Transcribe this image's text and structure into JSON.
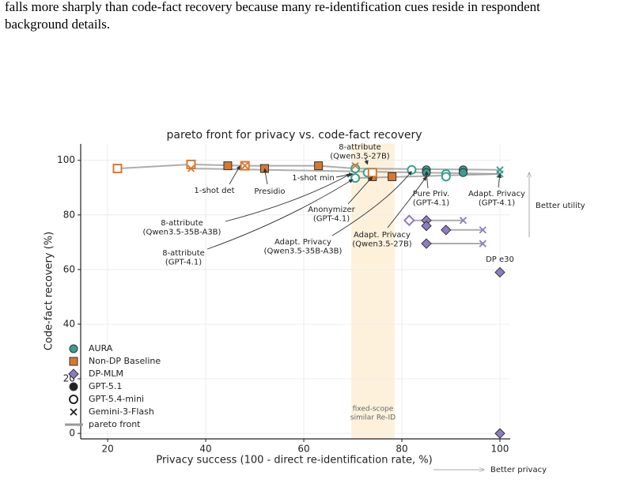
{
  "page_text": {
    "lines": [
      "falls more sharply than code-fact recovery because many re-identification cues reside in respondent",
      "background details."
    ]
  },
  "chart_data": {
    "type": "scatter",
    "title": "pareto front for privacy vs. code-fact recovery",
    "x_label": "Privacy success (100 - direct re-identification rate, %)",
    "y_label": "Code-fact recovery (%)",
    "xlim": [
      14.5,
      102.1
    ],
    "ylim": [
      -2,
      106
    ],
    "xticks": [
      20,
      40,
      60,
      80,
      100
    ],
    "yticks": [
      0,
      20,
      40,
      60,
      80,
      100
    ],
    "grid": true,
    "models": [
      {
        "name": "GPT-5.1",
        "style": "filled"
      },
      {
        "name": "GPT-5.4-mini",
        "style": "open"
      },
      {
        "name": "Gemini-3-Flash",
        "style": "x"
      }
    ],
    "series": [
      {
        "name": "AURA",
        "color": "#3a9e8f",
        "marker": "circle",
        "x": [
          70.5,
          70.5,
          73,
          82,
          85,
          85,
          89,
          89,
          92.5,
          92.5,
          100,
          100
        ],
        "values": [
          97,
          93.5,
          95.5,
          96.5,
          96.5,
          95.5,
          95,
          94,
          96.5,
          95.5,
          96.5,
          95
        ],
        "model": [
          "GPT-5.4-mini",
          "GPT-5.4-mini",
          "GPT-5.4-mini",
          "GPT-5.4-mini",
          "GPT-5.1",
          "GPT-5.1",
          "GPT-5.4-mini",
          "GPT-5.4-mini",
          "GPT-5.1",
          "GPT-5.1",
          "Gemini-3-Flash",
          "Gemini-3-Flash"
        ]
      },
      {
        "name": "Non-DP Baseline",
        "color": "#d9782d",
        "marker": "square",
        "x": [
          22,
          37,
          37,
          44.5,
          48,
          48,
          52,
          63,
          70.5,
          74,
          78,
          74
        ],
        "values": [
          97,
          98.5,
          97,
          98,
          98,
          98,
          97,
          98,
          98,
          94,
          94,
          95.5
        ],
        "model": [
          "GPT-5.4-mini",
          "GPT-5.4-mini",
          "Gemini-3-Flash",
          "GPT-5.1",
          "GPT-5.4-mini",
          "Gemini-3-Flash",
          "GPT-5.1",
          "GPT-5.1",
          "Gemini-3-Flash",
          "GPT-5.1",
          "GPT-5.1",
          "GPT-5.4-mini"
        ]
      },
      {
        "name": "DP-MLM",
        "color": "#8e7cc3",
        "marker": "diamond",
        "x": [
          81.5,
          85,
          85,
          89,
          85,
          92.5,
          96.5,
          96.5,
          100,
          100
        ],
        "values": [
          78,
          78,
          76,
          74.5,
          69.5,
          78,
          74.5,
          69.5,
          59,
          0
        ],
        "model": [
          "GPT-5.4-mini",
          "GPT-5.1",
          "GPT-5.1",
          "GPT-5.1",
          "GPT-5.1",
          "Gemini-3-Flash",
          "Gemini-3-Flash",
          "Gemini-3-Flash",
          "GPT-5.1",
          "GPT-5.1"
        ]
      }
    ],
    "pareto_front": {
      "name": "pareto front",
      "color": "#999999",
      "segments": [
        {
          "x": [
            22,
            37,
            48,
            63,
            70.5,
            100
          ],
          "values": [
            97,
            98.5,
            98,
            98,
            97,
            96.5
          ]
        },
        {
          "x": [
            37,
            100
          ],
          "values": [
            97,
            95
          ]
        },
        {
          "x": [
            70.5,
            100
          ],
          "values": [
            93.5,
            95
          ]
        },
        {
          "x": [
            81.5,
            92.5
          ],
          "values": [
            78,
            78
          ]
        },
        {
          "x": [
            89,
            96.5
          ],
          "values": [
            74.5,
            74.5
          ]
        },
        {
          "x": [
            85,
            96.5
          ],
          "values": [
            69.5,
            69.5
          ]
        }
      ]
    },
    "shaded_band": {
      "x": [
        69.7,
        78.5
      ],
      "color": "#fdf1dc",
      "label": [
        "fixed-scope",
        "similar Re-ID"
      ]
    },
    "annotations": [
      {
        "lines": [
          "8-attribute",
          "(Qwen3.5-27B)"
        ],
        "x": 73,
        "y": 98.5
      },
      {
        "lines": [
          "1-shot det"
        ],
        "x": 47,
        "y": 98
      },
      {
        "lines": [
          "Presidio"
        ],
        "x": 52,
        "y": 97
      },
      {
        "lines": [
          "1-shot min"
        ],
        "x": 70,
        "y": 95
      },
      {
        "lines": [
          "Anonymizer",
          "(GPT-4.1)"
        ],
        "x": 74,
        "y": 94
      },
      {
        "lines": [
          "Pure Priv.",
          "(GPT-4.1)"
        ],
        "x": 85,
        "y": 96
      },
      {
        "lines": [
          "Adapt. Privacy",
          "(GPT-4.1)"
        ],
        "x": 100,
        "y": 95
      },
      {
        "lines": [
          "8-attribute",
          "(Qwen3.5-35B-A3B)"
        ],
        "x": 69.5,
        "y": 95
      },
      {
        "lines": [
          "8-attribute",
          "(GPT-4.1)"
        ],
        "x": 70,
        "y": 93
      },
      {
        "lines": [
          "Adapt. Privacy",
          "(Qwen3.5-35B-A3B)"
        ],
        "x": 82,
        "y": 96
      },
      {
        "lines": [
          "Adapt. Privacy",
          "(Qwen3.5-27B)"
        ],
        "x": 85,
        "y": 94
      },
      {
        "lines": [
          "DP e30"
        ],
        "x": 100,
        "y": 59
      }
    ],
    "direction_labels": {
      "y": "Better utility",
      "x": "Better privacy"
    }
  }
}
